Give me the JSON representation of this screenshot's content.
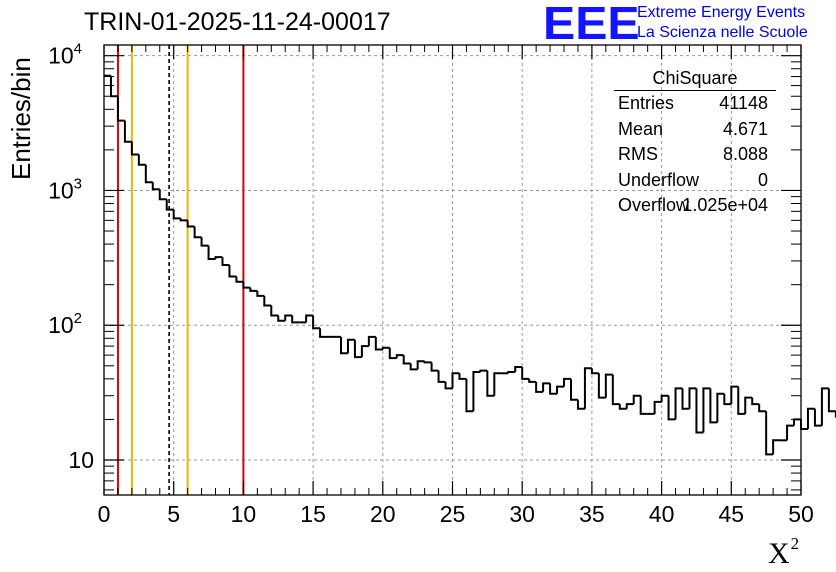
{
  "title": "TRIN-01-2025-11-24-00017",
  "ylabel": "Entries/bin",
  "xlabel": {
    "base": "X",
    "sup": "2"
  },
  "logo": {
    "mark": "EEE",
    "line1": "Extreme Energy Events",
    "line2": "La Scienza nelle Scuole",
    "color": "#1414ff"
  },
  "stats": {
    "title": "ChiSquare",
    "rows": [
      {
        "key": "Entries",
        "value": "41148"
      },
      {
        "key": "Mean",
        "value": "4.671"
      },
      {
        "key": "RMS",
        "value": "8.088"
      },
      {
        "key": "Underflow",
        "value": "0"
      },
      {
        "key": "Overflow",
        "value": "1.025e+04"
      }
    ]
  },
  "chart_data": {
    "type": "histogram",
    "title": "TRIN-01-2025-11-24-00017",
    "xlabel": "X^2",
    "ylabel": "Entries/bin",
    "xlim": [
      0,
      50
    ],
    "ylim": [
      5.5,
      12000
    ],
    "yscale": "log",
    "bin_width": 0.5,
    "grid": true,
    "x_ticks": [
      "0",
      "5",
      "10",
      "15",
      "20",
      "25",
      "30",
      "35",
      "40",
      "45",
      "50"
    ],
    "y_ticks": [
      {
        "value": 10,
        "label": "10"
      },
      {
        "value": 100,
        "label": "10^2"
      },
      {
        "value": 1000,
        "label": "10^3"
      },
      {
        "value": 10000,
        "label": "10^4"
      }
    ],
    "values": [
      7100,
      5000,
      3300,
      2300,
      1850,
      1550,
      1150,
      1020,
      860,
      720,
      620,
      600,
      540,
      450,
      390,
      310,
      320,
      280,
      230,
      210,
      190,
      180,
      165,
      140,
      118,
      108,
      118,
      105,
      105,
      118,
      95,
      82,
      82,
      82,
      62,
      78,
      58,
      70,
      82,
      66,
      68,
      57,
      60,
      52,
      47,
      54,
      53,
      46,
      38,
      34,
      44,
      40,
      23,
      45,
      46,
      30,
      44,
      44,
      45,
      49,
      40,
      38,
      32,
      37,
      31,
      35,
      40,
      28,
      24,
      48,
      44,
      29,
      43,
      26,
      24,
      26,
      30,
      22,
      22,
      27,
      30,
      20,
      34,
      24,
      34,
      16,
      34,
      19,
      31,
      26,
      35,
      22,
      29,
      26,
      23,
      11,
      14,
      14,
      18,
      20,
      17,
      24,
      18,
      34,
      23,
      21
    ],
    "vlines": [
      {
        "x": 1.0,
        "color": "#dd0000",
        "style": "solid"
      },
      {
        "x": 2.0,
        "color": "#f0b400",
        "style": "solid"
      },
      {
        "x": 4.671,
        "color": "#000000",
        "style": "dashed"
      },
      {
        "x": 6.0,
        "color": "#f0b400",
        "style": "solid"
      },
      {
        "x": 10.0,
        "color": "#dd0000",
        "style": "solid"
      }
    ]
  }
}
